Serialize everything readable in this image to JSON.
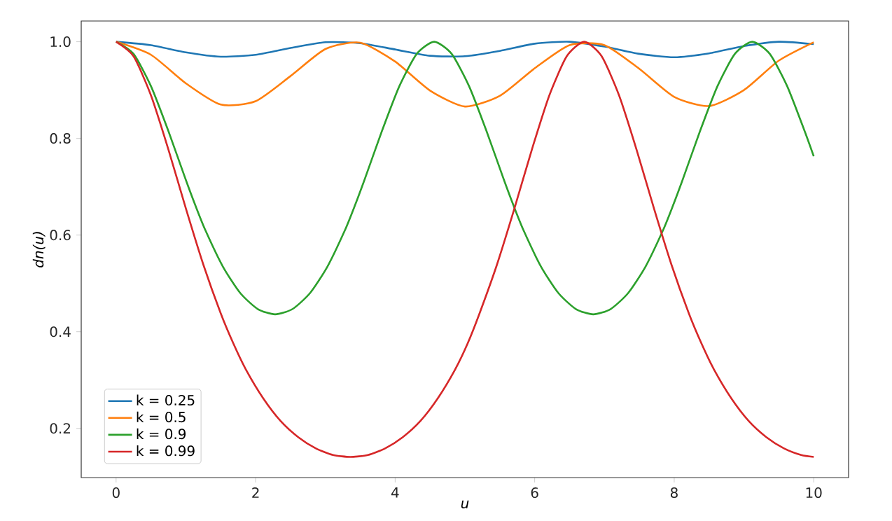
{
  "chart_data": {
    "type": "line",
    "xlabel": "u",
    "ylabel": "dn(u)",
    "xlim": [
      -0.5,
      10.5
    ],
    "ylim": [
      0.0982,
      1.0429
    ],
    "xticks": [
      0,
      2,
      4,
      6,
      8,
      10
    ],
    "yticks": [
      0.2,
      0.4,
      0.6,
      0.8,
      {
        "value": 1.0,
        "label": "1.0"
      }
    ],
    "legend": "bottom left",
    "series": [
      {
        "name": "k = 0.25",
        "color": "#1f77b4",
        "x": [
          0,
          0.5,
          1,
          1.5,
          2,
          2.5,
          3,
          3.5,
          4,
          4.5,
          5,
          5.5,
          6,
          6.5,
          7,
          7.5,
          8,
          8.5,
          9,
          9.5,
          10
        ],
        "values": [
          1.0,
          0.993,
          0.978,
          0.969,
          0.973,
          0.987,
          0.999,
          0.997,
          0.984,
          0.971,
          0.97,
          0.981,
          0.996,
          1.0,
          0.99,
          0.975,
          0.968,
          0.976,
          0.991,
          1.0,
          0.995
        ]
      },
      {
        "name": "k = 0.5",
        "color": "#ff7f0e",
        "x": [
          0,
          0.5,
          1,
          1.5,
          2,
          2.5,
          3,
          3.5,
          4,
          4.5,
          5,
          5.5,
          6,
          6.5,
          7,
          7.5,
          8,
          8.5,
          9,
          9.5,
          10
        ],
        "values": [
          1.0,
          0.973,
          0.914,
          0.87,
          0.877,
          0.929,
          0.985,
          0.998,
          0.959,
          0.899,
          0.866,
          0.888,
          0.945,
          0.993,
          0.993,
          0.944,
          0.886,
          0.867,
          0.9,
          0.961,
          0.999
        ]
      },
      {
        "name": "k = 0.9",
        "color": "#2ca02c",
        "x": [
          0,
          0.25,
          0.5,
          0.75,
          1.0,
          1.14,
          1.28,
          1.53,
          1.78,
          2.03,
          2.28,
          2.53,
          2.78,
          3.03,
          3.28,
          3.42,
          3.56,
          3.81,
          4.06,
          4.31,
          4.56,
          4.81,
          5.06,
          5.31,
          5.56,
          5.7,
          5.84,
          6.09,
          6.34,
          6.59,
          6.84,
          7.09,
          7.34,
          7.59,
          7.84,
          7.98,
          8.12,
          8.37,
          8.62,
          8.87,
          9.12,
          9.37,
          9.62,
          9.87,
          10
        ],
        "values": [
          1.0,
          0.975,
          0.908,
          0.815,
          0.714,
          0.66,
          0.61,
          0.535,
          0.48,
          0.447,
          0.436,
          0.447,
          0.48,
          0.535,
          0.61,
          0.66,
          0.714,
          0.815,
          0.908,
          0.975,
          1.0,
          0.975,
          0.908,
          0.815,
          0.714,
          0.66,
          0.61,
          0.535,
          0.48,
          0.447,
          0.436,
          0.447,
          0.48,
          0.535,
          0.61,
          0.66,
          0.714,
          0.815,
          0.908,
          0.975,
          1.0,
          0.975,
          0.908,
          0.815,
          0.763
        ]
      },
      {
        "name": "k = 0.99",
        "color": "#d62728",
        "x": [
          0,
          0.25,
          0.5,
          0.75,
          1.0,
          1.25,
          1.5,
          1.68,
          1.86,
          2.11,
          2.36,
          2.61,
          2.86,
          3.11,
          3.36,
          3.61,
          3.86,
          4.11,
          4.36,
          4.61,
          4.86,
          5.04,
          5.21,
          5.46,
          5.71,
          5.96,
          6.21,
          6.46,
          6.71,
          6.96,
          7.21,
          7.46,
          7.71,
          7.96,
          8.21,
          8.39,
          8.57,
          8.82,
          9.07,
          9.32,
          9.57,
          9.82,
          10
        ],
        "values": [
          1.0,
          0.97,
          0.889,
          0.777,
          0.655,
          0.539,
          0.438,
          0.376,
          0.322,
          0.262,
          0.215,
          0.182,
          0.159,
          0.145,
          0.141,
          0.145,
          0.159,
          0.182,
          0.215,
          0.262,
          0.322,
          0.376,
          0.438,
          0.539,
          0.655,
          0.777,
          0.889,
          0.97,
          1.0,
          0.97,
          0.889,
          0.777,
          0.655,
          0.539,
          0.438,
          0.376,
          0.322,
          0.262,
          0.215,
          0.182,
          0.159,
          0.145,
          0.141
        ]
      }
    ]
  }
}
